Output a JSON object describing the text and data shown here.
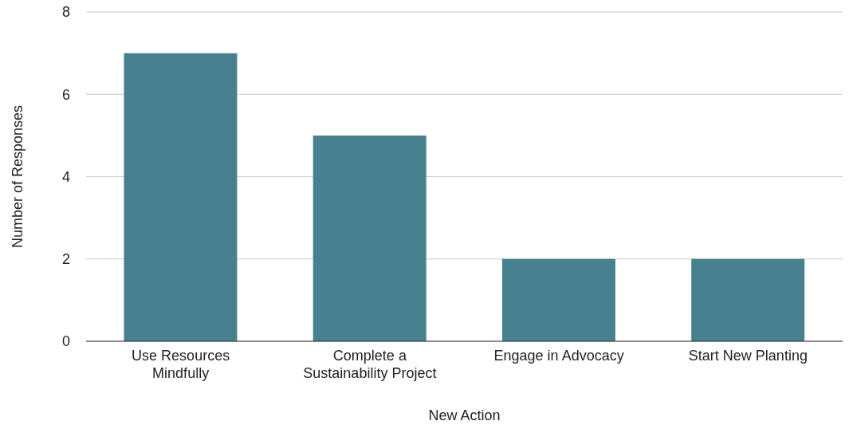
{
  "chart_data": {
    "type": "bar",
    "xlabel": "New Action",
    "ylabel": "Number of Responses",
    "categories": [
      "Use Resources Mindfully",
      "Complete a Sustainability Project",
      "Engage in Advocacy",
      "Start New Planting"
    ],
    "values": [
      7,
      5,
      2,
      2
    ],
    "color": "#47818f",
    "ylim": [
      0,
      8
    ],
    "yticks": [
      0,
      2,
      4,
      6,
      8
    ],
    "grid": "y"
  }
}
